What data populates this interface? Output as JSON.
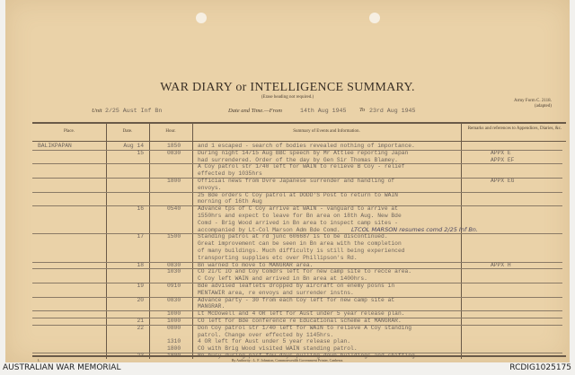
{
  "document": {
    "title": "WAR DIARY or INTELLIGENCE SUMMARY.",
    "subtitle": "(Erase heading not required.)",
    "form_ref": "Army Form C. 2118.",
    "form_note": "(adapted)",
    "unit_label": "Unit",
    "unit": "2/25 Aust Inf Bn",
    "date_label": "Date and Time.—From",
    "date_from": "14th Aug 1945",
    "to_label": "To",
    "date_to": "23rd Aug 1945",
    "columns": [
      "Place.",
      "Date.",
      "Hour.",
      "Summary of Events and Information.",
      "Remarks and references to Appendices, Diaries, &c."
    ],
    "rows": [
      {
        "place": "BALIKPAPAN",
        "date": "Aug  14",
        "hour": "1850",
        "text": "and 1 escaped - search of bodies revealed nothing of importance.",
        "remark": "",
        "rule": false
      },
      {
        "place": "",
        "date": "15",
        "hour": "0830",
        "text": "During night 14/15 Aug BBC speech by Mr Attlee reporting Japan",
        "remark": "APPX E",
        "rule": true
      },
      {
        "place": "",
        "date": "",
        "hour": "",
        "text": "had surrendered. Order of the day by Gen Sir Thomas Blamey.",
        "remark": "APPX EF",
        "rule": false
      },
      {
        "place": "",
        "date": "",
        "hour": "",
        "text": "A Coy patrol str 1/40 left for WAIN to relieve B Coy - relief",
        "remark": "",
        "rule": true
      },
      {
        "place": "",
        "date": "",
        "hour": "",
        "text": "effected by 1035hrs",
        "remark": "",
        "rule": false
      },
      {
        "place": "",
        "date": "",
        "hour": "1800",
        "text": "Official news from Dvre Japanese surrender and handling of",
        "remark": "APPX EG",
        "rule": true
      },
      {
        "place": "",
        "date": "",
        "hour": "",
        "text": "envoys.",
        "remark": "",
        "rule": false
      },
      {
        "place": "",
        "date": "",
        "hour": "",
        "text": "25 Bde orders C Coy patrol at DODD'S Post to return to WAIN",
        "remark": "",
        "rule": true
      },
      {
        "place": "",
        "date": "",
        "hour": "",
        "text": "morning of 16th Aug",
        "remark": "",
        "rule": false
      },
      {
        "place": "",
        "date": "16",
        "hour": "0540",
        "text": "Advance tps of C Coy arrive at WAIN - vanguard to arrive at",
        "remark": "",
        "rule": true
      },
      {
        "place": "",
        "date": "",
        "hour": "",
        "text": "1550hrs and expect to leave for Bn area on 18th Aug. New Bde",
        "remark": "",
        "rule": false
      },
      {
        "place": "",
        "date": "",
        "hour": "",
        "text": "Comd - Brig Wood arrived in Bn area to inspect camp sites -",
        "remark": "",
        "rule": false
      },
      {
        "place": "",
        "date": "",
        "hour": "",
        "text": "accompanied by Lt-Col Marson Adm Bde Comd.",
        "remark": "",
        "rule": false,
        "handwritten": "LTCOL MARSON resumes comd 2/25 Inf Bn."
      },
      {
        "place": "",
        "date": "17",
        "hour": "1500",
        "text": "Standing patrol at rd junc 606687 is to be discontinued.",
        "remark": "",
        "rule": true
      },
      {
        "place": "",
        "date": "",
        "hour": "",
        "text": "Great improvement can be seen in Bn area with the completion",
        "remark": "",
        "rule": false
      },
      {
        "place": "",
        "date": "",
        "hour": "",
        "text": "of many buildings. Much difficulty is still being experienced",
        "remark": "",
        "rule": false
      },
      {
        "place": "",
        "date": "",
        "hour": "",
        "text": "transporting supplies etc over Phillipson's Rd.",
        "remark": "",
        "rule": false
      },
      {
        "place": "",
        "date": "18",
        "hour": "0830",
        "text": "Bn warned to move to MANGRAR area.",
        "remark": "APPX H",
        "rule": true
      },
      {
        "place": "",
        "date": "",
        "hour": "1030",
        "text": "CO 2I/C IO and Coy Comdrs left for new camp site to recce area.",
        "remark": "",
        "rule": true
      },
      {
        "place": "",
        "date": "",
        "hour": "",
        "text": "C Coy left WAIN and arrived in Bn area at 1400hrs.",
        "remark": "",
        "rule": false
      },
      {
        "place": "",
        "date": "19",
        "hour": "0910",
        "text": "Bde advised leaflets dropped by aircraft on enemy posns in",
        "remark": "",
        "rule": true
      },
      {
        "place": "",
        "date": "",
        "hour": "",
        "text": "MENTAWIR area, re envoys and surrender instns.",
        "remark": "",
        "rule": false
      },
      {
        "place": "",
        "date": "20",
        "hour": "0830",
        "text": "Advance party - 30 from each Coy left for new camp site at",
        "remark": "",
        "rule": true
      },
      {
        "place": "",
        "date": "",
        "hour": "",
        "text": "MANGRAR.",
        "remark": "",
        "rule": false
      },
      {
        "place": "",
        "date": "",
        "hour": "1000",
        "text": "Lt McDowell and 4 OR left for Aust under 5 year release plan.",
        "remark": "",
        "rule": true
      },
      {
        "place": "",
        "date": "21",
        "hour": "1000",
        "text": "CO left for Bde conference re Educational scheme at MANGRAR.",
        "remark": "",
        "rule": true
      },
      {
        "place": "",
        "date": "22",
        "hour": "0800",
        "text": "Don Coy patrol str 1/40 left for WAIN to relieve A Coy standing",
        "remark": "",
        "rule": true
      },
      {
        "place": "",
        "date": "",
        "hour": "",
        "text": "patrol. Change over effected by 1145hrs.",
        "remark": "",
        "rule": false
      },
      {
        "place": "",
        "date": "",
        "hour": "1310",
        "text": "4 OR left for Aust under 5 year release plan.",
        "remark": "",
        "rule": false
      },
      {
        "place": "",
        "date": "",
        "hour": "1800",
        "text": "CO with Brig Wood visited WAIN standing patrol.",
        "remark": "",
        "rule": false
      },
      {
        "place": "",
        "date": "23",
        "hour": "1800",
        "text": "Bn busy during past few days pulling down buildings and shifting",
        "remark": "",
        "rule": true
      }
    ],
    "footer": "By Authority : L. F. Johnston, Commonwealth Government Printer, Canberra.",
    "page_mark": "L"
  },
  "caption": {
    "left": "AUSTRALIAN WAR MEMORIAL",
    "right": "RCDIG1025175"
  }
}
